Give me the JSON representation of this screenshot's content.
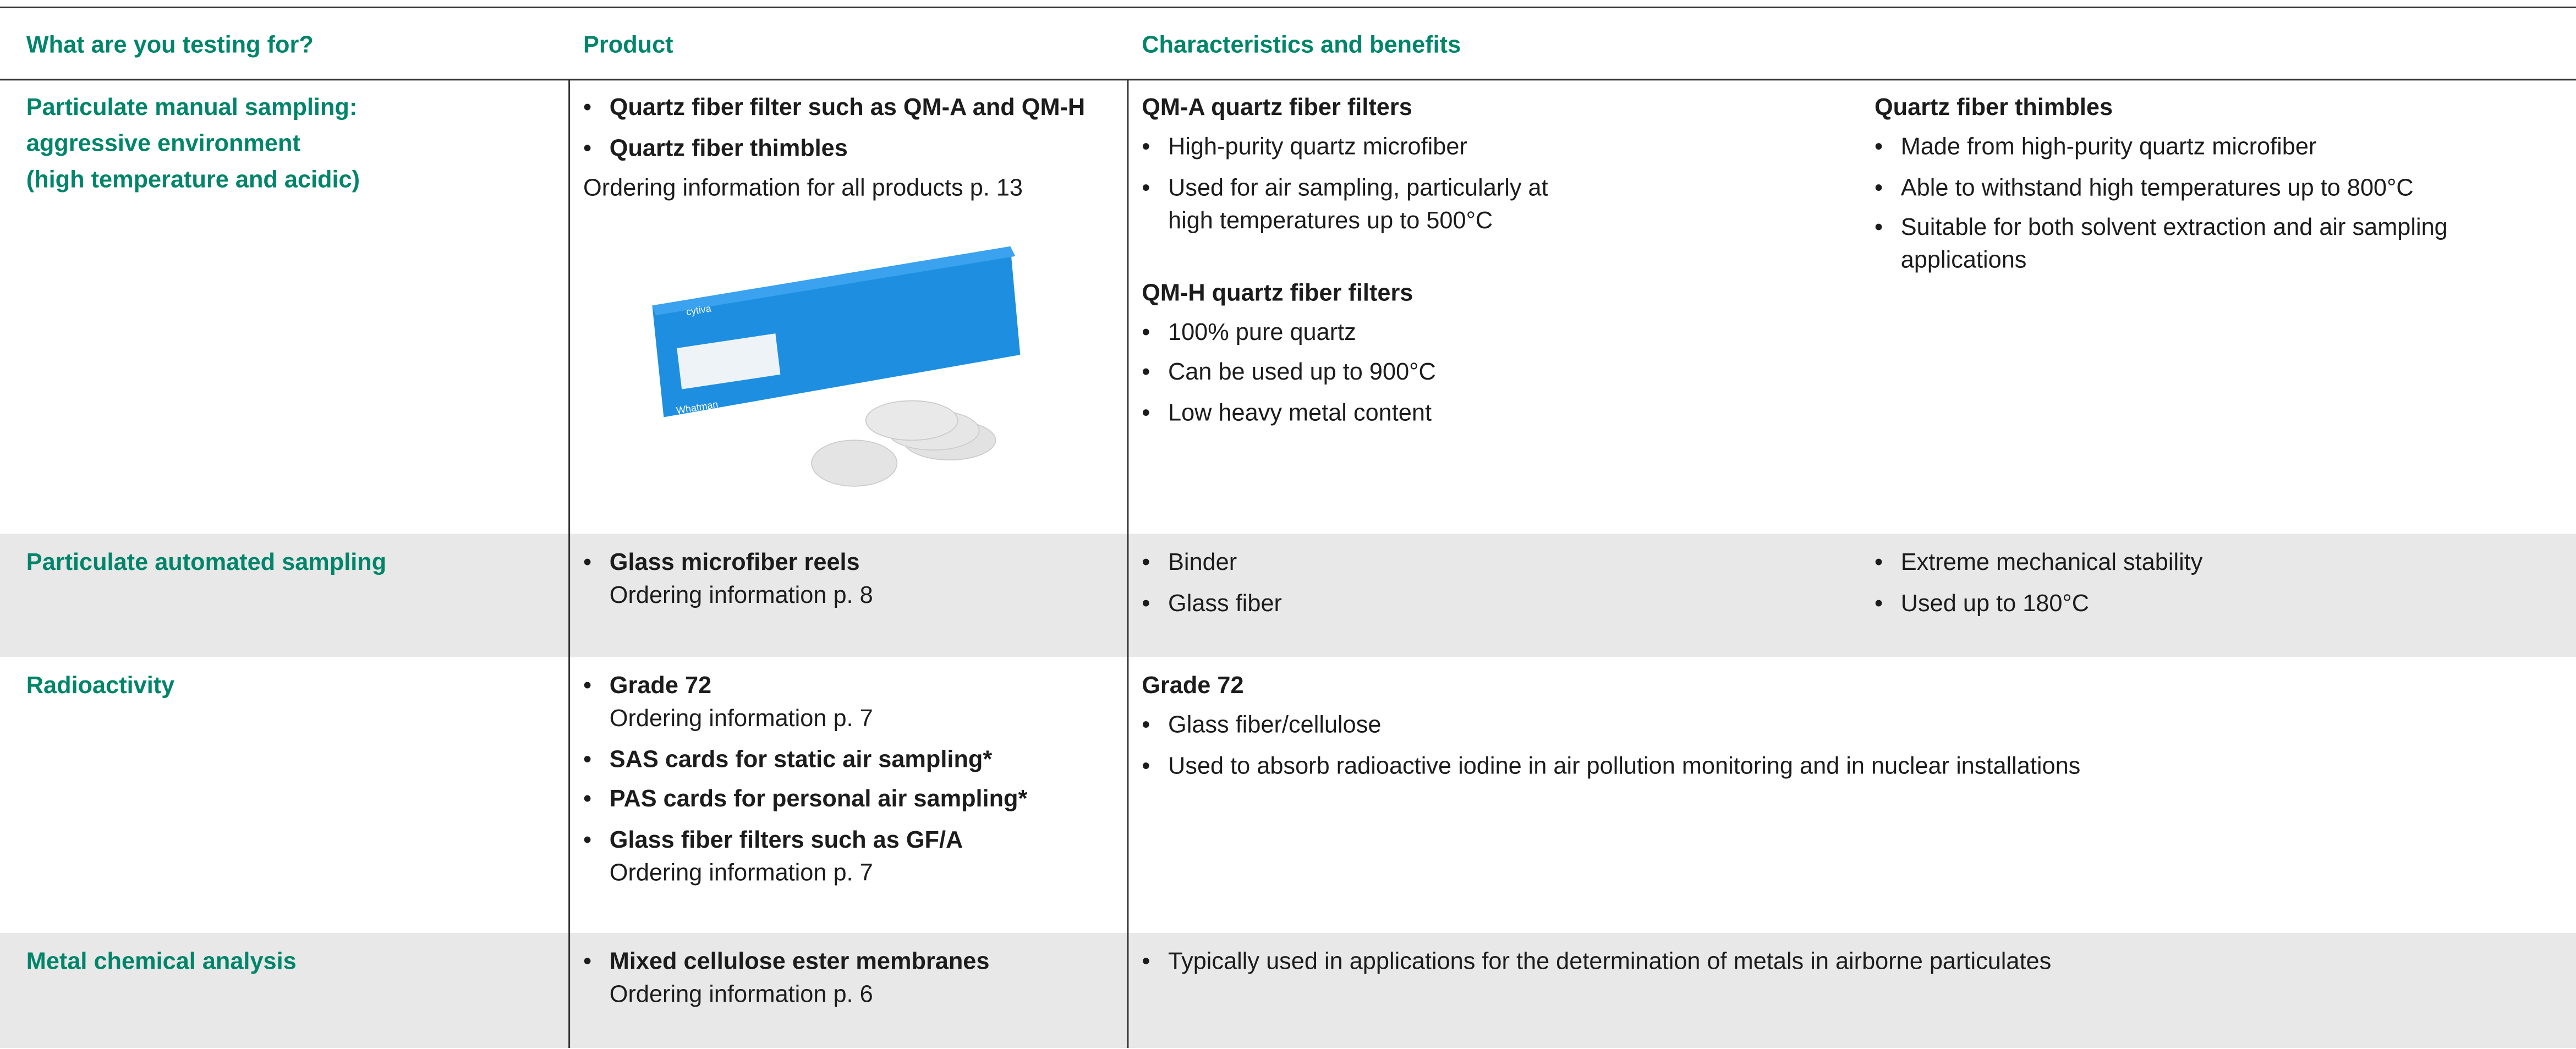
{
  "header": {
    "testing": "What are you testing for?",
    "product": "Product",
    "characteristics": "Characteristics and benefits"
  },
  "rows": [
    {
      "testing": [
        "Particulate manual sampling:",
        "aggressive environment",
        "(high temperature and acidic)"
      ],
      "product": {
        "items": [
          {
            "name": "Quartz fiber filter such as QM-A and QM-H"
          },
          {
            "name": "Quartz fiber thimbles"
          }
        ],
        "note": "Ordering information for all products p. 13",
        "image_labels": [
          "cytiva",
          "Whatman"
        ]
      },
      "characteristics": [
        [
          {
            "heading": "QM-A quartz fiber filters",
            "bullets": [
              "High-purity quartz microfiber",
              "Used for air sampling, particularly at high temperatures up to 500°C"
            ]
          },
          {
            "heading": "QM-H quartz fiber filters",
            "bullets": [
              "100% pure quartz",
              "Can be used up to 900°C",
              "Low heavy metal content"
            ]
          }
        ],
        [
          {
            "heading": "Quartz fiber thimbles",
            "bullets": [
              "Made from high-purity quartz microfiber",
              "Able to withstand high temperatures up to 800°C",
              "Suitable for both solvent extraction and air sampling applications"
            ]
          }
        ]
      ]
    },
    {
      "testing": [
        "Particulate automated sampling"
      ],
      "product": {
        "items": [
          {
            "name": "Glass microfiber reels",
            "ordering": "Ordering information p. 8"
          }
        ]
      },
      "characteristics": [
        [
          {
            "bullets": [
              "Binder",
              "Glass fiber"
            ]
          }
        ],
        [
          {
            "bullets": [
              "Extreme mechanical stability",
              "Used up to 180°C"
            ]
          }
        ]
      ]
    },
    {
      "testing": [
        "Radioactivity"
      ],
      "product": {
        "items": [
          {
            "name": "Grade 72",
            "ordering": "Ordering information p. 7"
          },
          {
            "name": "SAS cards for static air sampling*"
          },
          {
            "name": "PAS cards for personal air sampling*"
          },
          {
            "name": "Glass fiber filters such as GF/A",
            "ordering": "Ordering information p. 7"
          }
        ]
      },
      "characteristics": [
        [
          {
            "heading": "Grade 72",
            "bullets": [
              "Glass fiber/cellulose",
              "Used to absorb radioactive iodine in air pollution monitoring and in nuclear installations"
            ]
          }
        ]
      ]
    },
    {
      "testing": [
        "Metal chemical analysis"
      ],
      "product": {
        "items": [
          {
            "name": "Mixed cellulose ester membranes",
            "ordering": "Ordering information p. 6"
          }
        ]
      },
      "characteristics": [
        [
          {
            "bullets": [
              "Typically used in applications for the determination of metals in airborne particulates"
            ]
          }
        ]
      ]
    }
  ]
}
